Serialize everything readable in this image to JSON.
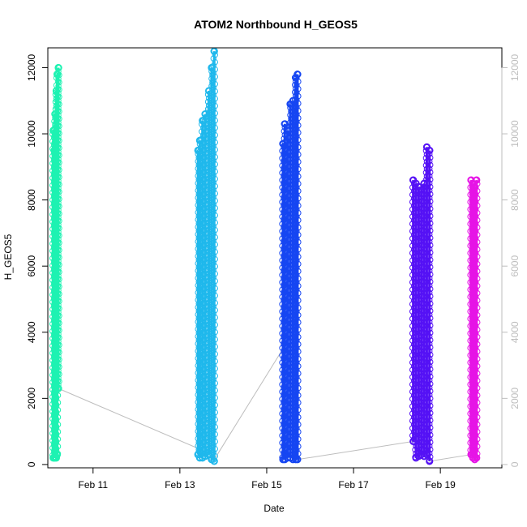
{
  "chart_data": {
    "type": "scatter",
    "title": "ATOM2 Northbound H_GEOS5",
    "xlabel": "Date",
    "ylabel": "H_GEOS5",
    "x_type": "date",
    "xlim": [
      "2017-02-09T23:00",
      "2017-02-20T10:00"
    ],
    "ylim": [
      -100,
      12600
    ],
    "x_ticks": [
      {
        "value": "2017-02-11",
        "label": "Feb 11"
      },
      {
        "value": "2017-02-13",
        "label": "Feb 13"
      },
      {
        "value": "2017-02-15",
        "label": "Feb 15"
      },
      {
        "value": "2017-02-17",
        "label": "Feb 17"
      },
      {
        "value": "2017-02-19",
        "label": "Feb 19"
      }
    ],
    "y_ticks": [
      0,
      2000,
      4000,
      6000,
      8000,
      10000,
      12000
    ],
    "y_ticks_right": [
      0,
      2000,
      4000,
      6000,
      8000,
      10000,
      12000
    ],
    "grid": false,
    "legend": "none",
    "connector_color": "#bdbdbd",
    "series": [
      {
        "color": "#1ef2b2",
        "x": [
          "2017-02-10T02:00",
          "2017-02-10T02:30",
          "2017-02-10T03:00",
          "2017-02-10T03:40",
          "2017-02-10T04:10",
          "2017-02-10T04:50"
        ],
        "min": [
          200,
          200,
          200,
          200,
          300,
          2300
        ],
        "max": [
          10100,
          9500,
          10600,
          11300,
          11800,
          12000
        ]
      },
      {
        "color": "#1fb8ec",
        "x": [
          "2017-02-13T10:00",
          "2017-02-13T11:00",
          "2017-02-13T12:30",
          "2017-02-13T14:00",
          "2017-02-13T16:00",
          "2017-02-13T17:30",
          "2017-02-13T19:00"
        ],
        "min": [
          300,
          200,
          200,
          250,
          300,
          150,
          100
        ],
        "max": [
          9500,
          9800,
          10400,
          10600,
          11300,
          12000,
          12500
        ]
      },
      {
        "color": "#1646f2",
        "x": [
          "2017-02-15T09:00",
          "2017-02-15T10:00",
          "2017-02-15T11:30",
          "2017-02-15T13:00",
          "2017-02-15T14:30",
          "2017-02-15T16:00",
          "2017-02-15T17:00"
        ],
        "min": [
          150,
          150,
          200,
          200,
          150,
          150,
          150
        ],
        "max": [
          9700,
          10300,
          10100,
          10900,
          11000,
          11700,
          11800
        ]
      },
      {
        "color": "#5512f5",
        "x": [
          "2017-02-18T09:00",
          "2017-02-18T10:30",
          "2017-02-18T12:00",
          "2017-02-18T13:30",
          "2017-02-18T15:00",
          "2017-02-18T16:30",
          "2017-02-18T18:00"
        ],
        "min": [
          700,
          200,
          250,
          300,
          250,
          300,
          100
        ],
        "max": [
          8600,
          8500,
          8400,
          8300,
          8500,
          9600,
          9500
        ]
      },
      {
        "color": "#e614e6",
        "x": [
          "2017-02-19T17:00",
          "2017-02-19T18:00",
          "2017-02-19T19:00",
          "2017-02-19T20:00"
        ],
        "min": [
          300,
          200,
          150,
          200
        ],
        "max": [
          8600,
          8500,
          8400,
          8600
        ]
      }
    ],
    "connectors": [
      {
        "from": [
          "2017-02-10T04:50",
          2300
        ],
        "to": [
          "2017-02-13T18:00",
          300
        ]
      },
      {
        "from": [
          "2017-02-13T19:00",
          150
        ],
        "to": [
          "2017-02-15T09:00",
          3500
        ]
      },
      {
        "from": [
          "2017-02-15T17:00",
          150
        ],
        "to": [
          "2017-02-18T09:00",
          700
        ]
      },
      {
        "from": [
          "2017-02-18T18:00",
          100
        ],
        "to": [
          "2017-02-19T17:00",
          300
        ]
      }
    ]
  }
}
